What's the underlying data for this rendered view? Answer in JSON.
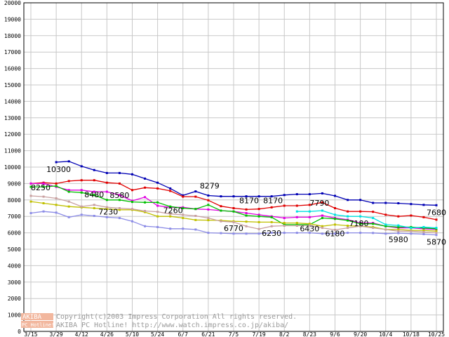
{
  "chart_data": {
    "type": "line",
    "title": "",
    "xlabel": "",
    "ylabel": "",
    "ylim": [
      0,
      20000
    ],
    "yticks": [
      0,
      1000,
      2000,
      3000,
      4000,
      5000,
      6000,
      7000,
      8000,
      9000,
      10000,
      11000,
      12000,
      13000,
      14000,
      15000,
      16000,
      17000,
      18000,
      19000,
      20000
    ],
    "grid": true,
    "legend": "none",
    "x_tick_labels": [
      "3/15",
      "3/29",
      "4/12",
      "4/26",
      "5/10",
      "5/24",
      "6/7",
      "6/21",
      "7/5",
      "7/19",
      "8/2",
      "8/23",
      "9/6",
      "9/20",
      "10/4",
      "10/18",
      "10/25"
    ],
    "series": [
      {
        "color": "#0000b4",
        "values": [
          null,
          null,
          10300,
          10350,
          10050,
          9820,
          9640,
          9640,
          9560,
          9300,
          9050,
          8700,
          8279,
          8520,
          8270,
          8220,
          8220,
          8220,
          8220,
          8220,
          8300,
          8350,
          8350,
          8400,
          8250,
          8000,
          8000,
          7820,
          7820,
          7800,
          7750,
          7700,
          7680
        ]
      },
      {
        "color": "#e00000",
        "values": [
          9000,
          9050,
          9000,
          9150,
          9200,
          9200,
          9050,
          9000,
          8600,
          8750,
          8700,
          8550,
          8200,
          8200,
          7980,
          7620,
          7500,
          7420,
          7450,
          7550,
          7650,
          7650,
          7700,
          7850,
          7500,
          7300,
          7300,
          7280,
          7100,
          7000,
          7050,
          6950,
          6800
        ]
      },
      {
        "color": "#e000e0",
        "values": [
          9000,
          9000,
          8800,
          8600,
          8600,
          8500,
          8500,
          8300,
          7950,
          8170,
          7650,
          7550,
          7550,
          7450,
          7420,
          7350,
          7300,
          7200,
          7100,
          7000,
          6900,
          6950,
          6950,
          7050,
          6900,
          6800,
          6600,
          6600,
          6400,
          6300,
          6300,
          6250,
          6200
        ]
      },
      {
        "color": "#00c000",
        "values": [
          8800,
          8800,
          8850,
          8500,
          8450,
          8300,
          8000,
          8000,
          7880,
          7850,
          7850,
          7600,
          7500,
          7450,
          7700,
          7350,
          7300,
          7050,
          7000,
          6950,
          6500,
          6500,
          6500,
          6900,
          6850,
          6750,
          6550,
          6550,
          6400,
          6350,
          6350,
          6300,
          6250
        ]
      },
      {
        "color": "#00e0e0",
        "values": [
          null,
          null,
          null,
          null,
          null,
          null,
          null,
          null,
          null,
          null,
          null,
          null,
          null,
          null,
          null,
          null,
          null,
          null,
          null,
          null,
          null,
          7300,
          7300,
          7350,
          7100,
          7000,
          7000,
          6900,
          6500,
          6450,
          6300,
          6350,
          6300
        ]
      },
      {
        "color": "#c0c000",
        "values": [
          7900,
          7800,
          7700,
          7600,
          7550,
          7500,
          7450,
          7400,
          7400,
          7260,
          7000,
          7000,
          6900,
          6780,
          6770,
          6750,
          6700,
          6680,
          6650,
          6650,
          6600,
          6600,
          6550,
          6400,
          6500,
          6430,
          6400,
          6350,
          6200,
          6200,
          6150,
          6150,
          6100
        ]
      },
      {
        "color": "#c8a0a0",
        "values": [
          8250,
          8200,
          8100,
          7900,
          7600,
          7700,
          7560,
          7500,
          7450,
          7330,
          7280,
          7150,
          7100,
          7030,
          6900,
          6700,
          6650,
          6400,
          6230,
          6400,
          6430,
          6430,
          6450,
          6300,
          6180,
          6300,
          6400,
          6300,
          6200,
          6100,
          6100,
          6050,
          6000
        ]
      },
      {
        "color": "#8c8ce6",
        "values": [
          7200,
          7300,
          7230,
          6950,
          7100,
          7030,
          6950,
          6900,
          6700,
          6400,
          6350,
          6250,
          6250,
          6200,
          6000,
          5980,
          5950,
          5950,
          5950,
          6000,
          6000,
          6000,
          6000,
          5950,
          5950,
          6000,
          6000,
          5990,
          5950,
          5980,
          5950,
          5920,
          5870
        ]
      }
    ],
    "data_labels": [
      {
        "text": "10300"
      },
      {
        "text": "8250"
      },
      {
        "text": "8480"
      },
      {
        "text": "7230"
      },
      {
        "text": "8580"
      },
      {
        "text": "7260"
      },
      {
        "text": "8279"
      },
      {
        "text": "6770"
      },
      {
        "text": "8170"
      },
      {
        "text": "6230"
      },
      {
        "text": "8170"
      },
      {
        "text": "6430"
      },
      {
        "text": "7790"
      },
      {
        "text": "6180"
      },
      {
        "text": "7180"
      },
      {
        "text": "5980"
      },
      {
        "text": "7680"
      },
      {
        "text": "5870"
      }
    ]
  },
  "watermark": {
    "badge_top": "AKIBA",
    "badge_bottom": "PC Hotline!",
    "line1": "Copyright(c)2003 Impress Corporation All rights reserved.",
    "line2": "AKIBA PC Hotline!  http://www.watch.impress.co.jp/akiba/"
  }
}
